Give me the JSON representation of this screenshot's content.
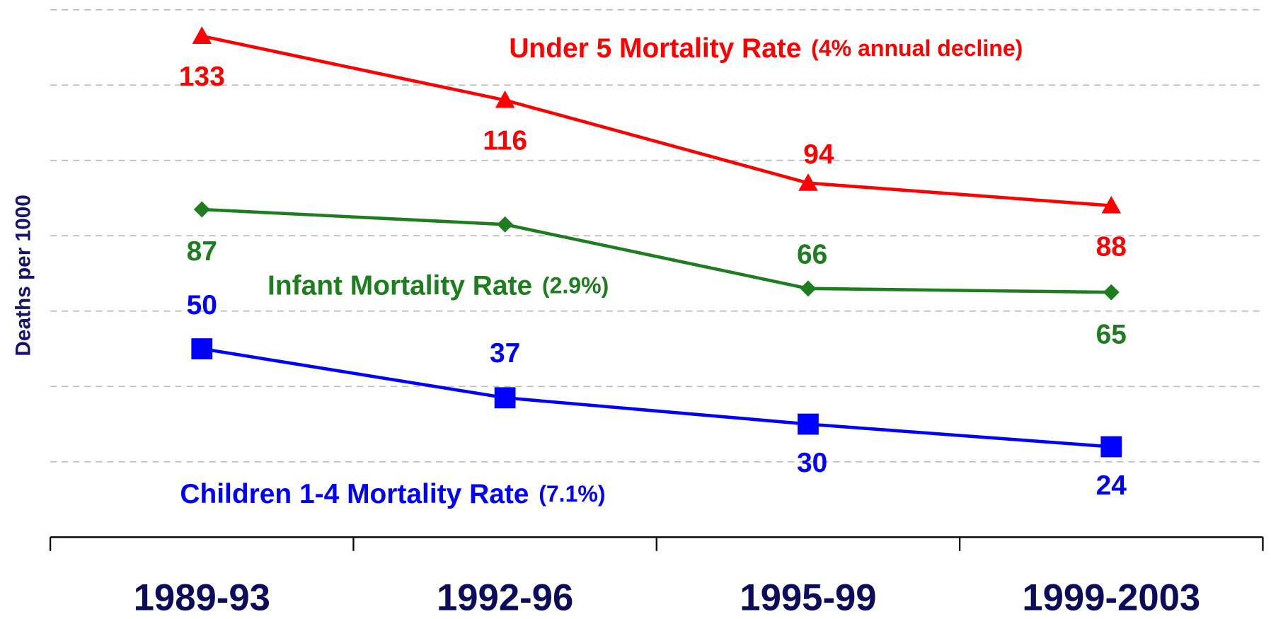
{
  "chart_data": {
    "type": "line",
    "y_label": "Deaths per 1000",
    "categories": [
      "1989-93",
      "1992-96",
      "1995-99",
      "1999-2003"
    ],
    "ylim": [
      0,
      140
    ],
    "yticks": [
      20,
      40,
      60,
      80,
      100,
      120,
      140
    ],
    "grid": true,
    "series": [
      {
        "name": "Under 5 Mortality Rate",
        "note": "(4% annual decline)",
        "color": "#ff0000",
        "marker": "triangle",
        "values": [
          133,
          116,
          94,
          88
        ]
      },
      {
        "name": "Infant Mortality Rate",
        "note": "(2.9%)",
        "color": "#1e7d1e",
        "marker": "diamond",
        "values": [
          87,
          83,
          66,
          65
        ]
      },
      {
        "name": "Children 1-4 Mortality Rate",
        "note": "(7.1%)",
        "color": "#0000ff",
        "marker": "square",
        "values": [
          50,
          37,
          30,
          24
        ]
      }
    ]
  }
}
